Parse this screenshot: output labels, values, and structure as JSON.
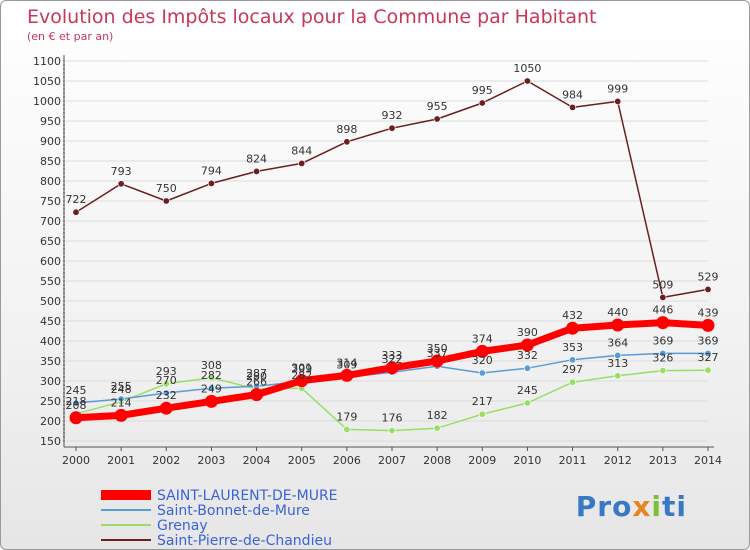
{
  "title": "Evolution des Impôts locaux pour la Commune par Habitant",
  "subtitle": "(en € et par an)",
  "logo": {
    "parts": [
      "Pro",
      "x",
      "i",
      "ti"
    ],
    "colors": [
      "#3a78c3",
      "#e8841f",
      "#7cbf3a",
      "#3a78c3"
    ]
  },
  "chart_data": {
    "type": "line",
    "title": "Evolution des Impôts locaux pour la Commune par Habitant",
    "ylabel": "(en € et par an)",
    "ylim": [
      150,
      1100
    ],
    "yticks": [
      150,
      200,
      250,
      300,
      350,
      400,
      450,
      500,
      550,
      600,
      650,
      700,
      750,
      800,
      850,
      900,
      950,
      1000,
      1050,
      1100
    ],
    "x": [
      "2000",
      "2001",
      "2002",
      "2003",
      "2004",
      "2005",
      "2006",
      "2007",
      "2008",
      "2009",
      "2010",
      "2011",
      "2012",
      "2013",
      "2014"
    ],
    "series": [
      {
        "name": "SAINT-LAURENT-DE-MURE",
        "color": "#ff0000",
        "values": [
          208,
          214,
          232,
          249,
          266,
          301,
          314,
          333,
          350,
          374,
          390,
          432,
          440,
          446,
          439
        ]
      },
      {
        "name": "Saint-Bonnet-de-Mure",
        "color": "#5b9bd5",
        "values": [
          245,
          255,
          270,
          282,
          287,
          299,
          309,
          322,
          337,
          320,
          332,
          353,
          364,
          369,
          369
        ]
      },
      {
        "name": "Grenay",
        "color": "#99dd66",
        "values": [
          218,
          248,
          293,
          308,
          280,
          282,
          179,
          176,
          182,
          217,
          245,
          297,
          313,
          326,
          327
        ]
      },
      {
        "name": "Saint-Pierre-de-Chandieu",
        "color": "#6b1f1f",
        "values": [
          722,
          793,
          750,
          794,
          824,
          844,
          898,
          932,
          955,
          995,
          1050,
          984,
          999,
          509,
          529
        ]
      }
    ]
  }
}
